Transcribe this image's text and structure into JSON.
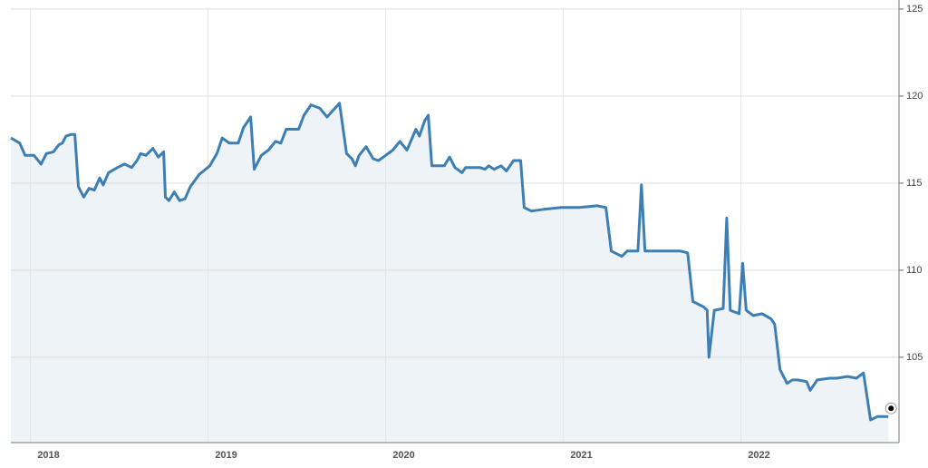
{
  "chart_data": {
    "type": "area",
    "x": [
      2017.89,
      2017.94,
      2017.97,
      2018.02,
      2018.06,
      2018.09,
      2018.13,
      2018.16,
      2018.18,
      2018.2,
      2018.23,
      2018.25,
      2018.27,
      2018.3,
      2018.33,
      2018.36,
      2018.39,
      2018.41,
      2018.44,
      2018.49,
      2018.53,
      2018.57,
      2018.6,
      2018.62,
      2018.65,
      2018.69,
      2018.72,
      2018.75,
      2018.76,
      2018.78,
      2018.81,
      2018.84,
      2018.87,
      2018.9,
      2018.95,
      2019.01,
      2019.05,
      2019.08,
      2019.12,
      2019.17,
      2019.2,
      2019.24,
      2019.26,
      2019.3,
      2019.34,
      2019.38,
      2019.41,
      2019.44,
      2019.51,
      2019.54,
      2019.58,
      2019.63,
      2019.67,
      2019.74,
      2019.78,
      2019.81,
      2019.83,
      2019.85,
      2019.89,
      2019.93,
      2019.96,
      2020.0,
      2020.04,
      2020.08,
      2020.12,
      2020.17,
      2020.19,
      2020.22,
      2020.24,
      2020.26,
      2020.33,
      2020.36,
      2020.39,
      2020.43,
      2020.45,
      2020.53,
      2020.56,
      2020.58,
      2020.61,
      2020.65,
      2020.68,
      2020.72,
      2020.76,
      2020.78,
      2020.82,
      2020.89,
      2020.99,
      2021.09,
      2021.19,
      2021.24,
      2021.27,
      2021.33,
      2021.36,
      2021.42,
      2021.44,
      2021.46,
      2021.56,
      2021.66,
      2021.7,
      2021.73,
      2021.79,
      2021.81,
      2021.82,
      2021.85,
      2021.9,
      2021.92,
      2021.94,
      2021.99,
      2022.01,
      2022.03,
      2022.07,
      2022.12,
      2022.17,
      2022.19,
      2022.22,
      2022.26,
      2022.29,
      2022.32,
      2022.37,
      2022.39,
      2022.43,
      2022.5,
      2022.54,
      2022.6,
      2022.65,
      2022.69,
      2022.73,
      2022.77,
      2022.83
    ],
    "values": [
      117.6,
      117.3,
      116.6,
      116.6,
      116.1,
      116.7,
      116.8,
      117.2,
      117.3,
      117.7,
      117.8,
      117.8,
      114.8,
      114.2,
      114.7,
      114.6,
      115.3,
      114.9,
      115.6,
      115.9,
      116.1,
      115.9,
      116.3,
      116.7,
      116.6,
      117.0,
      116.5,
      116.8,
      114.2,
      114.0,
      114.5,
      114.0,
      114.1,
      114.8,
      115.5,
      116.0,
      116.7,
      117.6,
      117.3,
      117.3,
      118.2,
      118.8,
      115.8,
      116.6,
      116.9,
      117.4,
      117.3,
      118.1,
      118.1,
      118.9,
      119.5,
      119.3,
      118.8,
      119.6,
      116.7,
      116.4,
      116.0,
      116.6,
      117.1,
      116.4,
      116.3,
      116.6,
      116.9,
      117.4,
      116.9,
      118.1,
      117.7,
      118.6,
      118.9,
      116.0,
      116.0,
      116.5,
      115.9,
      115.6,
      115.9,
      115.9,
      115.8,
      116.0,
      115.8,
      116.0,
      115.7,
      116.3,
      116.3,
      113.6,
      113.4,
      113.5,
      113.6,
      113.6,
      113.7,
      113.6,
      111.1,
      110.8,
      111.1,
      111.1,
      114.9,
      111.1,
      111.1,
      111.1,
      111.0,
      108.2,
      107.9,
      107.7,
      105.0,
      107.7,
      107.8,
      113.0,
      107.7,
      107.5,
      110.4,
      107.7,
      107.4,
      107.5,
      107.2,
      106.9,
      104.3,
      103.5,
      103.7,
      103.7,
      103.6,
      103.1,
      103.7,
      103.8,
      103.8,
      103.9,
      103.8,
      104.1,
      101.4,
      101.6,
      101.6
    ],
    "color": "#3d7fb3",
    "fill_color": "#eef3f7",
    "xlim": [
      2017.89,
      2022.89
    ],
    "xticks": [
      2018,
      2019,
      2020,
      2021,
      2022
    ],
    "ylim": [
      100.1,
      125
    ],
    "yticks": [
      105,
      110,
      115,
      120,
      125
    ],
    "grid": true,
    "y_axis_side": "right"
  }
}
